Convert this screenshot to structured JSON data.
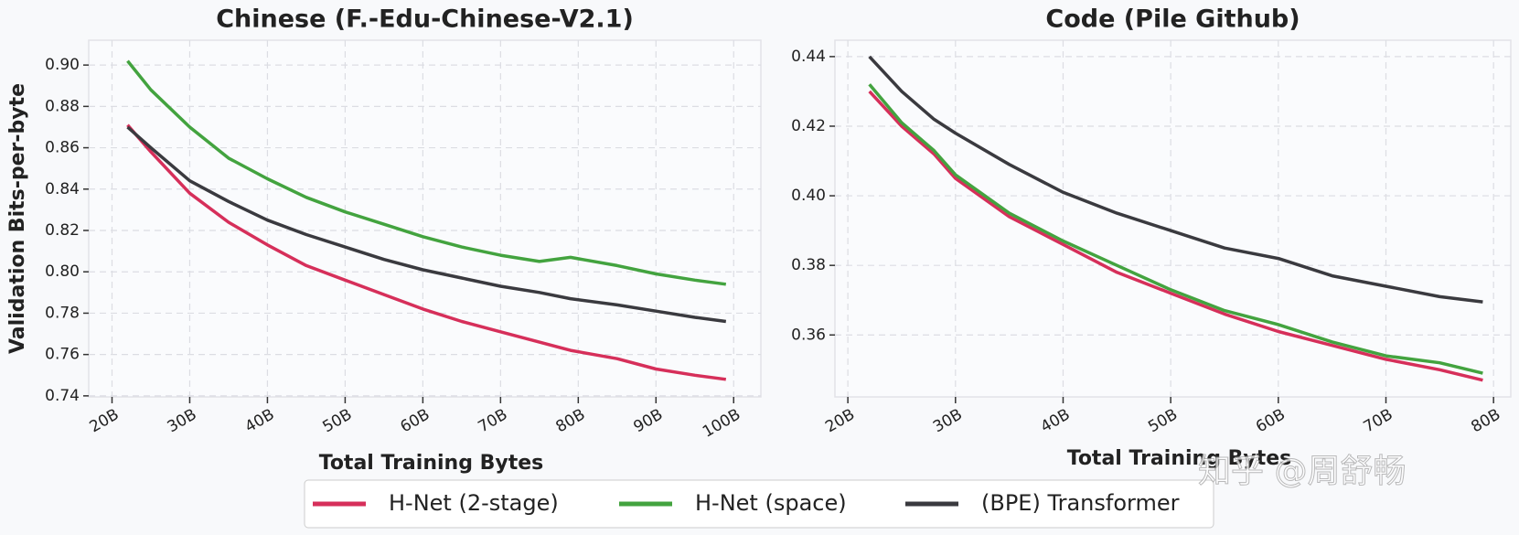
{
  "chart_data": [
    {
      "type": "line",
      "title": "Chinese (F.-Edu-Chinese-V2.1)",
      "xlabel": "Total Training Bytes",
      "ylabel": "Validation Bits-per-byte",
      "x": [
        22,
        25,
        30,
        35,
        40,
        45,
        50,
        55,
        60,
        65,
        70,
        75,
        79,
        85,
        90,
        95,
        99
      ],
      "series": [
        {
          "name": "H-Net (2-stage)",
          "color": "#d62f5a",
          "values": [
            0.871,
            0.858,
            0.838,
            0.824,
            0.813,
            0.803,
            0.796,
            0.789,
            0.782,
            0.776,
            0.771,
            0.766,
            0.762,
            0.758,
            0.753,
            0.75,
            0.748
          ]
        },
        {
          "name": "H-Net (space)",
          "color": "#43a33f",
          "values": [
            0.902,
            0.888,
            0.87,
            0.855,
            0.845,
            0.836,
            0.829,
            0.823,
            0.817,
            0.812,
            0.808,
            0.805,
            0.807,
            0.803,
            0.799,
            0.796,
            0.794
          ]
        },
        {
          "name": "(BPE) Transformer",
          "color": "#3a3a3f",
          "values": [
            0.87,
            0.86,
            0.844,
            0.834,
            0.825,
            0.818,
            0.812,
            0.806,
            0.801,
            0.797,
            0.793,
            0.79,
            0.787,
            0.784,
            0.781,
            0.778,
            0.776
          ]
        }
      ],
      "xlim": [
        17,
        103.5
      ],
      "ylim": [
        0.7395,
        0.912
      ],
      "xticks": [
        {
          "value": 20,
          "label": "20B"
        },
        {
          "value": 30,
          "label": "30B"
        },
        {
          "value": 40,
          "label": "40B"
        },
        {
          "value": 50,
          "label": "50B"
        },
        {
          "value": 60,
          "label": "60B"
        },
        {
          "value": 70,
          "label": "70B"
        },
        {
          "value": 80,
          "label": "80B"
        },
        {
          "value": 90,
          "label": "90B"
        },
        {
          "value": 100,
          "label": "100B"
        }
      ],
      "yticks": [
        0.74,
        0.76,
        0.78,
        {
          "value": 0.8,
          "label": "0.80"
        },
        0.82,
        0.84,
        0.86,
        0.88,
        {
          "value": 0.9,
          "label": "0.90"
        }
      ],
      "grid": true
    },
    {
      "type": "line",
      "title": "Code (Pile Github)",
      "xlabel": "Total Training Bytes",
      "x": [
        22,
        25,
        28,
        30,
        35,
        40,
        45,
        50,
        55,
        60,
        65,
        70,
        75,
        79
      ],
      "series": [
        {
          "name": "H-Net (2-stage)",
          "color": "#d62f5a",
          "values": [
            0.43,
            0.42,
            0.412,
            0.405,
            0.394,
            0.386,
            0.378,
            0.372,
            0.366,
            0.361,
            0.357,
            0.353,
            0.35,
            0.347
          ]
        },
        {
          "name": "H-Net (space)",
          "color": "#43a33f",
          "values": [
            0.432,
            0.421,
            0.413,
            0.406,
            0.395,
            0.387,
            0.38,
            0.373,
            0.367,
            0.363,
            0.358,
            0.354,
            0.352,
            0.349
          ]
        },
        {
          "name": "(BPE) Transformer",
          "color": "#3a3a3f",
          "values": [
            0.44,
            0.43,
            0.422,
            0.418,
            0.409,
            0.401,
            0.395,
            0.39,
            0.385,
            0.382,
            0.377,
            0.374,
            0.371,
            0.3695
          ]
        }
      ],
      "xlim": [
        18.8,
        81.6
      ],
      "ylim": [
        0.3422,
        0.4447
      ],
      "xticks": [
        {
          "value": 20,
          "label": "20B"
        },
        {
          "value": 30,
          "label": "30B"
        },
        {
          "value": 40,
          "label": "40B"
        },
        {
          "value": 50,
          "label": "50B"
        },
        {
          "value": 60,
          "label": "60B"
        },
        {
          "value": 70,
          "label": "70B"
        },
        {
          "value": 80,
          "label": "80B"
        }
      ],
      "yticks": [
        0.36,
        0.38,
        {
          "value": 0.4,
          "label": "0.40"
        },
        0.42,
        0.44
      ],
      "grid": true
    }
  ],
  "watermark": "知乎 @周舒畅"
}
